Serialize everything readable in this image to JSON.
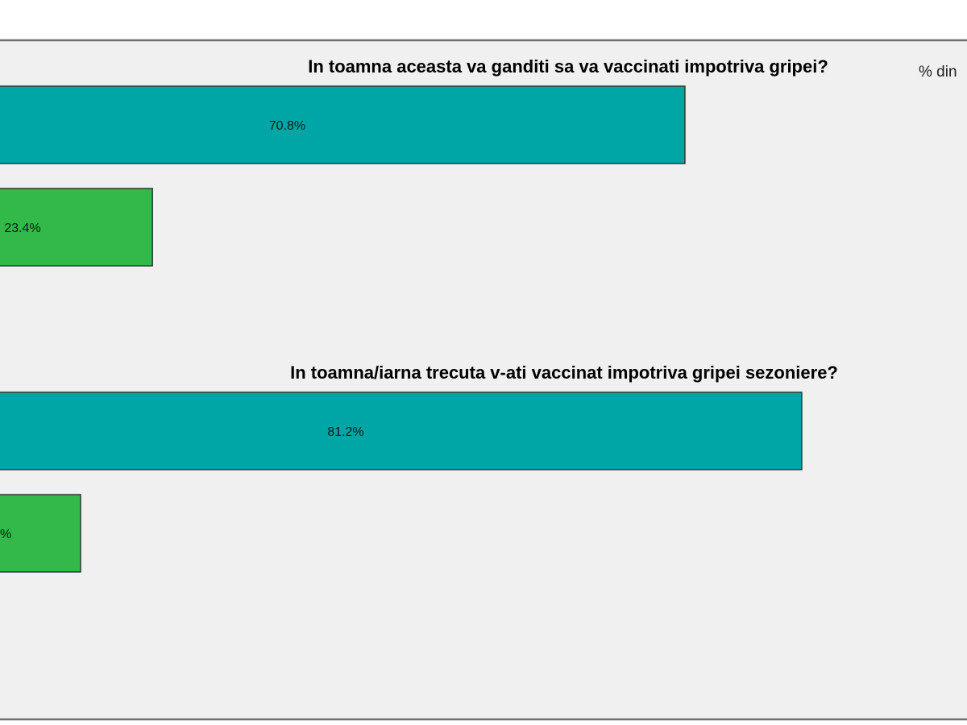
{
  "chart_data": [
    {
      "type": "bar",
      "orientation": "horizontal",
      "title": "In toamna aceasta va ganditi sa va vaccinati impotriva gripei?",
      "values": [
        70.8,
        23.4
      ],
      "data_labels": [
        "70.8%",
        "23.4%"
      ],
      "colors": [
        "#00a6a6",
        "#33b94a"
      ]
    },
    {
      "type": "bar",
      "orientation": "horizontal",
      "title": "In toamna/iarna trecuta v-ati vaccinat impotriva gripei sezoniere?",
      "values": [
        81.2,
        17.0
      ],
      "data_labels": [
        "81.2%",
        "%"
      ],
      "colors": [
        "#00a6a6",
        "#33b94a"
      ]
    }
  ],
  "unit_label": "% din",
  "colors": {
    "background": "#f0f0f0",
    "frame": "#6e6e6e",
    "bar_stroke": "#2a3a30"
  }
}
